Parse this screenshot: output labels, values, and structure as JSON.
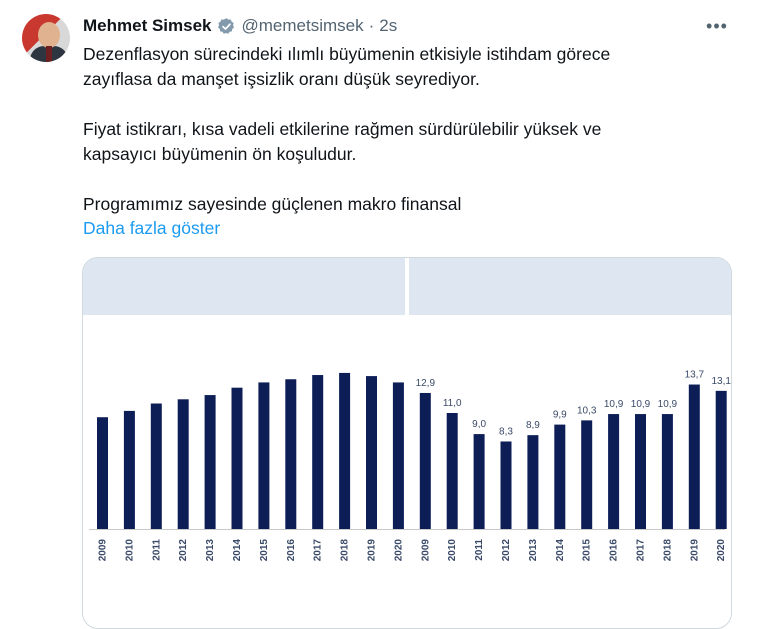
{
  "tweet": {
    "author_name": "Mehmet Simsek",
    "handle": "@memetsimsek",
    "separator": "·",
    "time": "2s",
    "more_label": "•••",
    "lines": [
      "Dezenflasyon sürecindeki ılımlı büyümenin etkisiyle istihdam görece",
      "zayıflasa da manşet işsizlik oranı düşük seyrediyor.",
      "",
      "Fiyat istikrarı, kısa vadeli etkilerine rağmen sürdürülebilir yüksek ve",
      "kapsayıcı büyümenin ön koşuludur.",
      "",
      "Programımız sayesinde güçlenen makro finansal"
    ],
    "show_more": "Daha fazla göster",
    "icons": {
      "verified": "verified-badge-icon",
      "more": "more-options-icon"
    },
    "colors": {
      "link": "#1d9bf0",
      "secondary": "#536471",
      "bar": "#0d1e57",
      "header_band": "#dde6f1"
    }
  },
  "chart_data": [
    {
      "type": "bar",
      "title": "",
      "xlabel": "",
      "ylabel": "",
      "categories": [
        "2009",
        "2010",
        "2011",
        "2012",
        "2013",
        "2014",
        "2015",
        "2016",
        "2017",
        "2018",
        "2019",
        "2020"
      ],
      "values": [
        10.6,
        11.2,
        11.9,
        12.3,
        12.7,
        13.4,
        13.9,
        14.2,
        14.6,
        14.8,
        14.5,
        13.9
      ],
      "data_labels": [],
      "ylim": [
        0,
        16.5
      ],
      "grid": false
    },
    {
      "type": "bar",
      "title": "",
      "xlabel": "",
      "ylabel": "",
      "categories": [
        "2009",
        "2010",
        "2011",
        "2012",
        "2013",
        "2014",
        "2015",
        "2016",
        "2017",
        "2018",
        "2019",
        "2020"
      ],
      "values": [
        12.9,
        11.0,
        9.0,
        8.3,
        8.9,
        9.9,
        10.3,
        10.9,
        10.9,
        10.9,
        13.7,
        13.1
      ],
      "data_labels": [
        "12,9",
        "11,0",
        "9,0",
        "8,3",
        "8,9",
        "9,9",
        "10,3",
        "10,9",
        "10,9",
        "10,9",
        "13,7",
        "13,1"
      ],
      "ylim": [
        0,
        16.5
      ],
      "grid": false
    }
  ]
}
